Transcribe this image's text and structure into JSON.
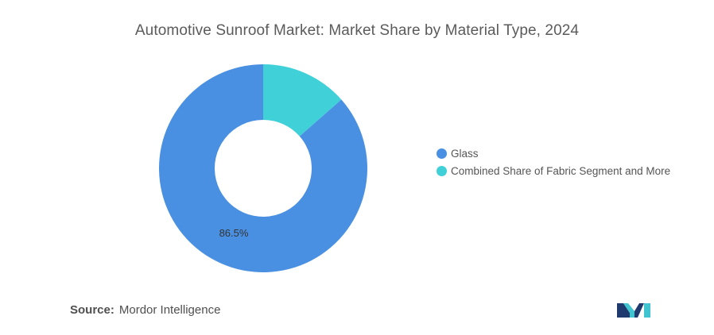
{
  "chart_data": {
    "type": "pie",
    "title": "Automotive Sunroof Market: Market Share by Material Type, 2024",
    "donut": true,
    "series": [
      {
        "name": "Glass",
        "value": 86.5,
        "label": "86.5%",
        "color": "#4a90e2"
      },
      {
        "name": "Combined Share of Fabric Segment and More",
        "value": 13.5,
        "label": "",
        "color": "#40d0d8"
      }
    ],
    "legend_position": "right"
  },
  "source": {
    "label": "Source:",
    "text": "Mordor Intelligence"
  },
  "brand": {
    "logo_icon": "mordor-intelligence-logo",
    "colors": [
      "#1f3a6e",
      "#40c4cf"
    ]
  }
}
